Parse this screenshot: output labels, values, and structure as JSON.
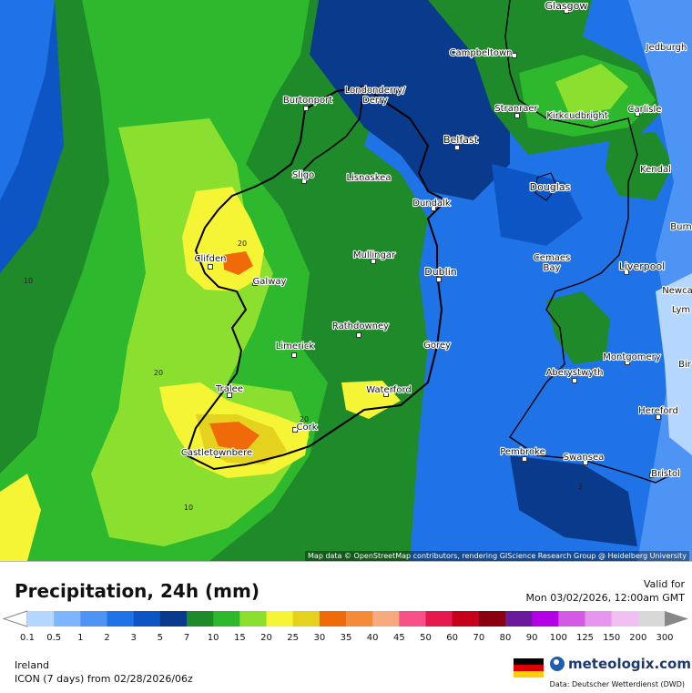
{
  "map": {
    "attribution": "Map data © OpenStreetMap contributors, rendering GIScience Research Group @ Heidelberg University",
    "cities": [
      {
        "name": "Glasgow"
      },
      {
        "name": "Jedburgh"
      },
      {
        "name": "Campbeltown"
      },
      {
        "name": "Burtonport"
      },
      {
        "name": "Londonderry/"
      },
      {
        "name": "Derry"
      },
      {
        "name": "Stranraer"
      },
      {
        "name": "Kirkcudbright"
      },
      {
        "name": "Carlisle"
      },
      {
        "name": "Belfast"
      },
      {
        "name": "Sligo"
      },
      {
        "name": "Lisnaskea"
      },
      {
        "name": "Kendal"
      },
      {
        "name": "Douglas"
      },
      {
        "name": "Dundalk"
      },
      {
        "name": "Burn"
      },
      {
        "name": "Clifden"
      },
      {
        "name": "Mullingar"
      },
      {
        "name": "Cemaes"
      },
      {
        "name": "Bay"
      },
      {
        "name": "Liverpool"
      },
      {
        "name": "Dublin"
      },
      {
        "name": "Galway"
      },
      {
        "name": "Newca"
      },
      {
        "name": "Lym"
      },
      {
        "name": "Rathdowney"
      },
      {
        "name": "Limerick"
      },
      {
        "name": "Gorey"
      },
      {
        "name": "Montgomery"
      },
      {
        "name": "Bir"
      },
      {
        "name": "Aberystwyth"
      },
      {
        "name": "Tralee"
      },
      {
        "name": "Waterford"
      },
      {
        "name": "Hereford"
      },
      {
        "name": "Cork"
      },
      {
        "name": "Castletownbere"
      },
      {
        "name": "Pembroke"
      },
      {
        "name": "Swansea"
      },
      {
        "name": "Bristol"
      }
    ],
    "contour_labels": [
      "20",
      "10",
      "20",
      "20",
      "10",
      "3"
    ]
  },
  "footer": {
    "title": "Precipitation, 24h (mm)",
    "valid_label": "Valid for",
    "valid_date": "Mon 03/02/2026, 12:00am GMT",
    "region": "Ireland",
    "model": "ICON (7 days)  from  02/28/2026/06z",
    "logo_text": "meteologix.com",
    "data_source": "Data: Deutscher Wetterdienst  (DWD)"
  },
  "legend": {
    "ticks": [
      "0.1",
      "0.5",
      "1",
      "2",
      "3",
      "5",
      "7",
      "10",
      "15",
      "20",
      "25",
      "30",
      "35",
      "40",
      "45",
      "50",
      "60",
      "70",
      "80",
      "90",
      "100",
      "125",
      "150",
      "200",
      "300"
    ],
    "colors": [
      "#b4d6ff",
      "#7eb5ff",
      "#4e94f5",
      "#1f73e6",
      "#0d55c4",
      "#0a3a8c",
      "#1e8a2a",
      "#2db82e",
      "#8be02f",
      "#f5f536",
      "#e4d21f",
      "#f06a0a",
      "#f58a3a",
      "#f7aa7e",
      "#f9508a",
      "#e6194e",
      "#c4001a",
      "#8a0010",
      "#6a1a9c",
      "#b400e6",
      "#d45ae6",
      "#e696ee",
      "#f0c0f2",
      "#d8d8d8"
    ]
  }
}
